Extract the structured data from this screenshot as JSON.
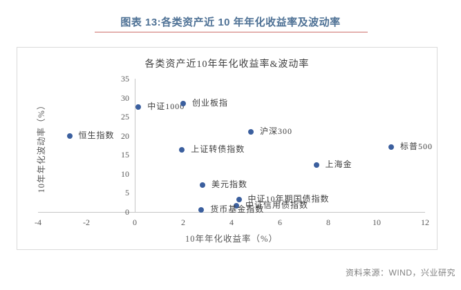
{
  "header": {
    "title": "图表 13:各类资产近 10 年年化收益率及波动率",
    "underline_color": "#cc6f6c"
  },
  "chart_data": {
    "type": "scatter",
    "title": "各类资产近10年年化收益率&波动率",
    "xlabel": "10年年化收益率（%）",
    "ylabel": "10年年化波动率（%）",
    "xlim": [
      -4,
      12
    ],
    "ylim": [
      0,
      35
    ],
    "x_ticks": [
      -4,
      -2,
      0,
      2,
      4,
      6,
      8,
      10,
      12
    ],
    "y_ticks": [
      0,
      5,
      10,
      15,
      20,
      25,
      30,
      35
    ],
    "grid": false,
    "legend": "none",
    "point_color": "#3b5f9e",
    "points": [
      {
        "label": "中证1000",
        "x": 0.15,
        "y": 27.5
      },
      {
        "label": "创业板指",
        "x": 2.0,
        "y": 28.5
      },
      {
        "label": "恒生指数",
        "x": -2.7,
        "y": 20.0
      },
      {
        "label": "沪深300",
        "x": 4.8,
        "y": 21.0
      },
      {
        "label": "上证转债指数",
        "x": 1.95,
        "y": 16.3
      },
      {
        "label": "标普500",
        "x": 10.6,
        "y": 17.0
      },
      {
        "label": "上海金",
        "x": 7.5,
        "y": 12.3
      },
      {
        "label": "美元指数",
        "x": 2.8,
        "y": 7.0
      },
      {
        "label": "中证10年期国债指数",
        "x": 4.3,
        "y": 3.2
      },
      {
        "label": "中证信用债指数",
        "x": 4.2,
        "y": 1.6
      },
      {
        "label": "货币基金指数",
        "x": 2.75,
        "y": 0.5
      }
    ]
  },
  "footer": {
    "source": "资料来源：WIND，兴业研究"
  }
}
